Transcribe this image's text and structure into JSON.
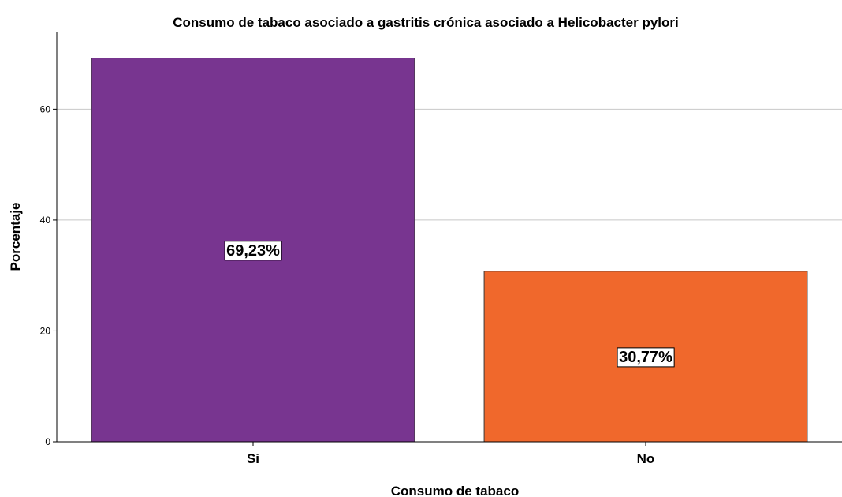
{
  "chart_data": {
    "type": "bar",
    "title": "Consumo de tabaco asociado a gastritis crónica asociado a Helicobacter pylori",
    "xlabel": "Consumo de tabaco",
    "ylabel": "Porcentaje",
    "categories": [
      "Si",
      "No"
    ],
    "values": [
      69.23,
      30.77
    ],
    "data_labels": [
      "69,23%",
      "30,77%"
    ],
    "colors": [
      "#783590",
      "#f0682c"
    ],
    "ylim": [
      0,
      74
    ],
    "yticks": [
      0,
      20,
      40,
      60
    ],
    "grid": true,
    "legend": "none"
  }
}
